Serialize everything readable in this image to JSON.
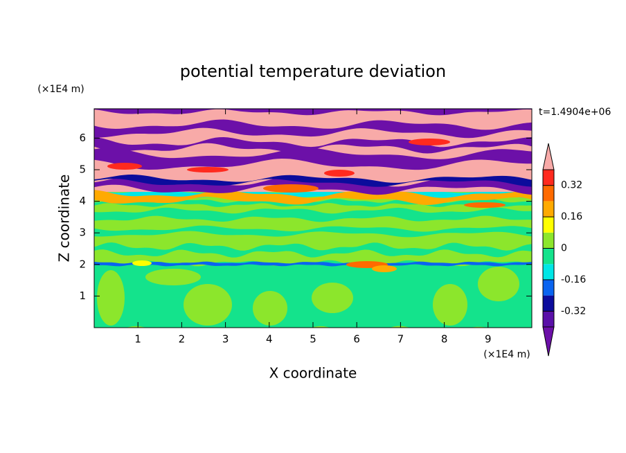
{
  "chart_data": {
    "type": "contour",
    "title": "potential temperature deviation",
    "xlabel": "X coordinate",
    "ylabel": "Z coordinate",
    "x_unit": "(×1E4 m)",
    "y_unit": "(×1E4 m)",
    "annotation": "t=1.4904e+06",
    "xlim": [
      0,
      10
    ],
    "ylim": [
      0,
      6.93
    ],
    "xticks": [
      1,
      2,
      3,
      4,
      5,
      6,
      7,
      8,
      9
    ],
    "yticks": [
      1,
      2,
      3,
      4,
      5,
      6
    ],
    "levels": [
      -0.4,
      -0.32,
      -0.24,
      -0.16,
      -0.08,
      0,
      0.08,
      0.16,
      0.24,
      0.32,
      0.4
    ],
    "colors": [
      "#5a10a8",
      "#0c0c9c",
      "#0a64f0",
      "#00e6e6",
      "#14e38c",
      "#8ce62c",
      "#ffff00",
      "#ffaa00",
      "#ff6a00",
      "#ff2a1e"
    ],
    "under_color": "#6c10a8",
    "over_color": "#f8aaa8",
    "colorbar_ticks": [
      0.32,
      0.16,
      0,
      -0.16,
      -0.32
    ]
  }
}
